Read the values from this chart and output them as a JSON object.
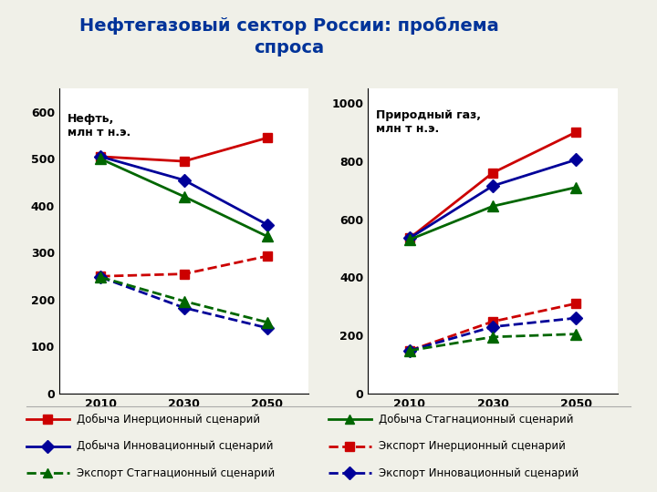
{
  "title": "Нефтегазовый сектор России: проблема\nспроса",
  "years": [
    2010,
    2030,
    2050
  ],
  "oil": {
    "label": "Нефть,\nмлн т н.э.",
    "ylim": [
      0,
      650
    ],
    "yticks": [
      0,
      100,
      200,
      300,
      400,
      500,
      600
    ],
    "dobych_inerts": [
      505,
      495,
      545
    ],
    "dobych_innov": [
      505,
      455,
      360
    ],
    "dobych_stagn": [
      500,
      420,
      335
    ],
    "eksport_inerts": [
      250,
      255,
      293
    ],
    "eksport_innov": [
      248,
      183,
      140
    ],
    "eksport_stagn": [
      248,
      197,
      152
    ]
  },
  "gas": {
    "label": "Природный газ,\nмлн т н.э.",
    "ylim": [
      0,
      1050
    ],
    "yticks": [
      0,
      200,
      400,
      600,
      800,
      1000
    ],
    "dobych_inerts": [
      535,
      760,
      900
    ],
    "dobych_innov": [
      535,
      715,
      805
    ],
    "dobych_stagn": [
      530,
      645,
      710
    ],
    "eksport_inerts": [
      148,
      248,
      310
    ],
    "eksport_innov": [
      148,
      230,
      260
    ],
    "eksport_stagn": [
      148,
      195,
      205
    ]
  },
  "colors": {
    "red": "#CC0000",
    "blue": "#000099",
    "green": "#006600"
  },
  "legend_items": [
    {
      "label": "Добыча Инерционный сценарий",
      "color": "#CC0000",
      "linestyle": "-",
      "marker": "s"
    },
    {
      "label": "Добыча Стагнационный сценарий",
      "color": "#006600",
      "linestyle": "-",
      "marker": "^"
    },
    {
      "label": "Добыча Инновационный сценарий",
      "color": "#000099",
      "linestyle": "-",
      "marker": "D"
    },
    {
      "label": "Экспорт Инерционный сценарий",
      "color": "#CC0000",
      "linestyle": "--",
      "marker": "s"
    },
    {
      "label": "Экспорт Стагнационный сценарий",
      "color": "#006600",
      "linestyle": "--",
      "marker": "^"
    },
    {
      "label": "Экспорт Инновационный сценарий",
      "color": "#000099",
      "linestyle": "--",
      "marker": "D"
    }
  ],
  "background_color": "#F0F0E8",
  "plot_bg": "#FFFFFF",
  "title_color": "#003399",
  "title_fontsize": 14
}
